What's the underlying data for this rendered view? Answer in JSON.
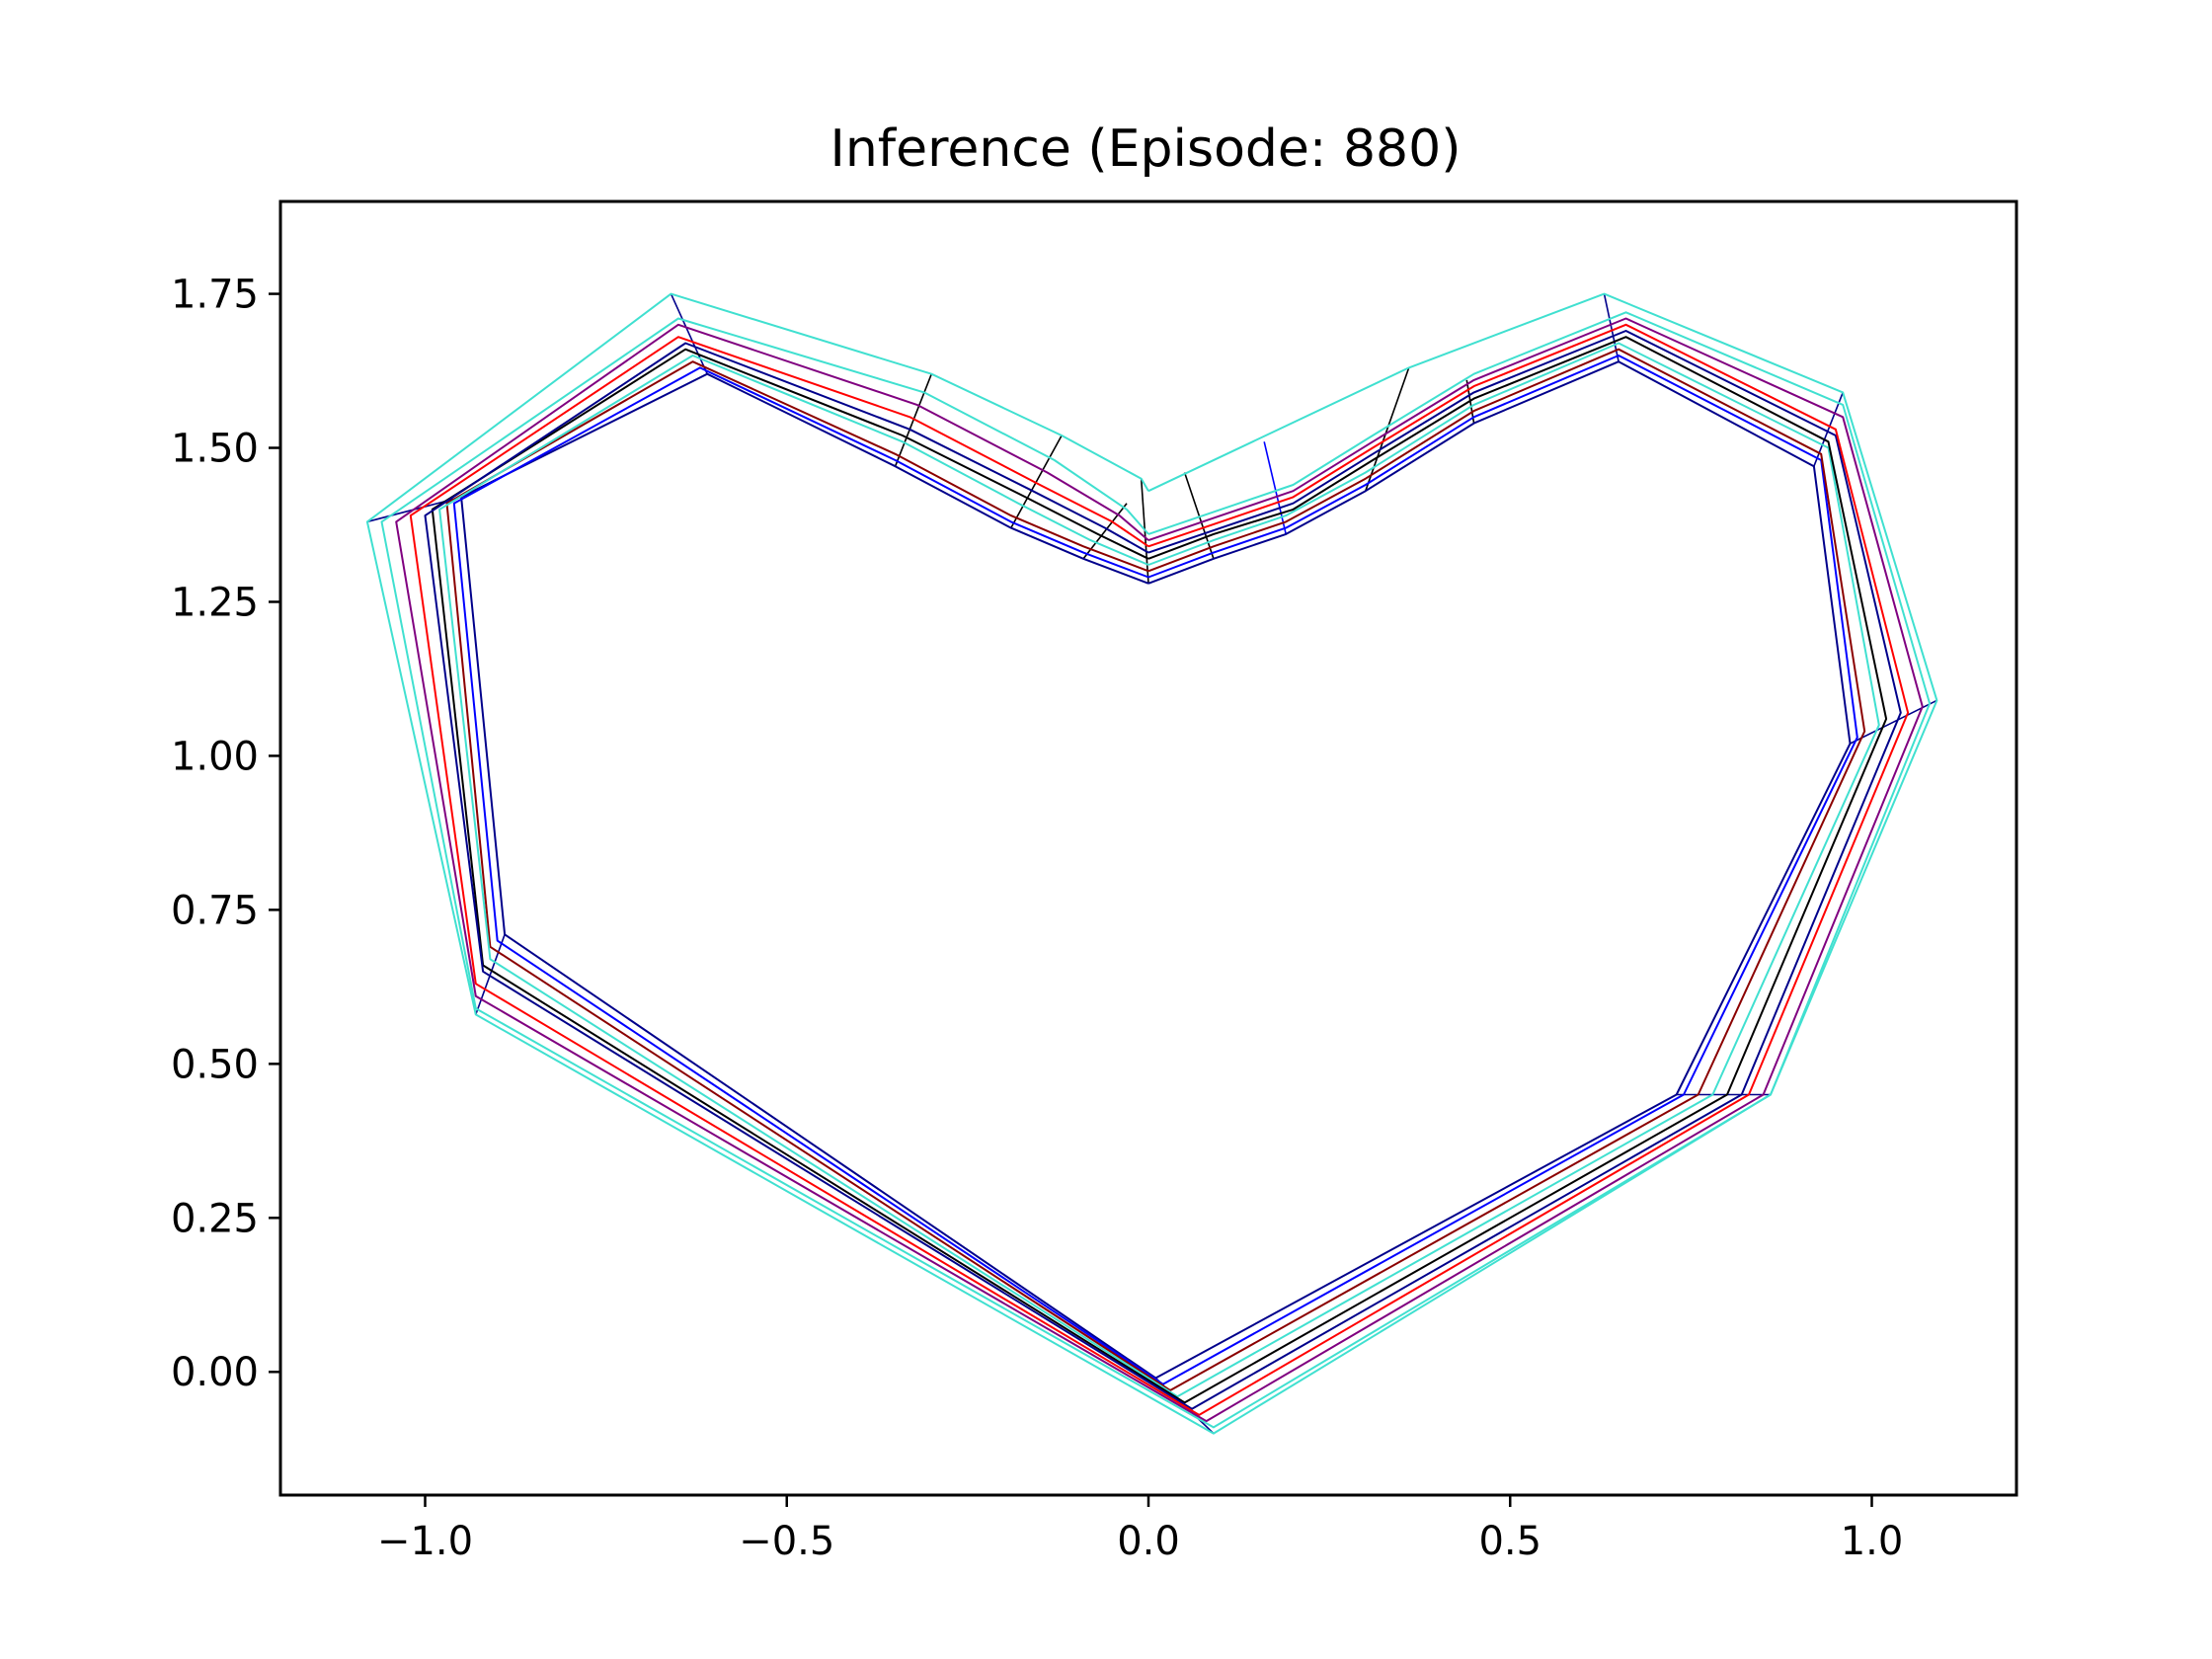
{
  "chart_data": {
    "type": "line",
    "title": "Inference (Episode: 880)",
    "xlabel": "",
    "ylabel": "",
    "xlim": [
      -1.2,
      1.2
    ],
    "ylim": [
      -0.2,
      1.9
    ],
    "grid": false,
    "legend": "none",
    "x_ticks": [
      {
        "value": -1.0,
        "label": "−1.0"
      },
      {
        "value": -0.5,
        "label": "−0.5"
      },
      {
        "value": 0.0,
        "label": "0.0"
      },
      {
        "value": 0.5,
        "label": "0.5"
      },
      {
        "value": 1.0,
        "label": "1.0"
      }
    ],
    "y_ticks": [
      {
        "value": 0.0,
        "label": "0.00"
      },
      {
        "value": 0.25,
        "label": "0.25"
      },
      {
        "value": 0.5,
        "label": "0.50"
      },
      {
        "value": 0.75,
        "label": "0.75"
      },
      {
        "value": 1.0,
        "label": "1.00"
      },
      {
        "value": 1.25,
        "label": "1.25"
      },
      {
        "value": 1.5,
        "label": "1.50"
      },
      {
        "value": 1.75,
        "label": "1.75"
      }
    ],
    "series": [
      {
        "color": "#00008b",
        "points": [
          [
            0.0,
            1.28
          ],
          [
            0.09,
            1.32
          ],
          [
            0.19,
            1.36
          ],
          [
            0.3,
            1.43
          ],
          [
            0.45,
            1.54
          ],
          [
            0.65,
            1.64
          ],
          [
            0.92,
            1.47
          ],
          [
            0.97,
            1.02
          ],
          [
            0.73,
            0.45
          ],
          [
            0.01,
            -0.01
          ],
          [
            -0.89,
            0.71
          ],
          [
            -0.95,
            1.42
          ],
          [
            -0.61,
            1.62
          ],
          [
            -0.35,
            1.47
          ],
          [
            -0.19,
            1.37
          ],
          [
            -0.09,
            1.32
          ],
          [
            0.0,
            1.28
          ]
        ]
      },
      {
        "color": "#0000ff",
        "points": [
          [
            0.0,
            1.29
          ],
          [
            0.09,
            1.33
          ],
          [
            0.19,
            1.37
          ],
          [
            0.3,
            1.44
          ],
          [
            0.45,
            1.55
          ],
          [
            0.65,
            1.65
          ],
          [
            0.93,
            1.48
          ],
          [
            0.98,
            1.03
          ],
          [
            0.74,
            0.45
          ],
          [
            0.02,
            -0.02
          ],
          [
            -0.9,
            0.7
          ],
          [
            -0.96,
            1.41
          ],
          [
            -0.62,
            1.63
          ],
          [
            -0.35,
            1.48
          ],
          [
            -0.19,
            1.38
          ],
          [
            -0.09,
            1.33
          ],
          [
            0.0,
            1.29
          ]
        ]
      },
      {
        "color": "#8b0000",
        "points": [
          [
            0.0,
            1.3
          ],
          [
            0.09,
            1.34
          ],
          [
            0.19,
            1.38
          ],
          [
            0.3,
            1.45
          ],
          [
            0.45,
            1.56
          ],
          [
            0.65,
            1.66
          ],
          [
            0.93,
            1.49
          ],
          [
            0.99,
            1.04
          ],
          [
            0.76,
            0.45
          ],
          [
            0.03,
            -0.03
          ],
          [
            -0.91,
            0.69
          ],
          [
            -0.97,
            1.41
          ],
          [
            -0.63,
            1.64
          ],
          [
            -0.35,
            1.49
          ],
          [
            -0.19,
            1.39
          ],
          [
            -0.09,
            1.34
          ],
          [
            0.0,
            1.3
          ]
        ]
      },
      {
        "color": "#40e0d0",
        "points": [
          [
            0.0,
            1.31
          ],
          [
            0.09,
            1.35
          ],
          [
            0.19,
            1.39
          ],
          [
            0.3,
            1.46
          ],
          [
            0.45,
            1.57
          ],
          [
            0.65,
            1.67
          ],
          [
            0.94,
            1.5
          ],
          [
            1.01,
            1.05
          ],
          [
            0.78,
            0.45
          ],
          [
            0.04,
            -0.04
          ],
          [
            -0.91,
            0.67
          ],
          [
            -0.98,
            1.4
          ],
          [
            -0.63,
            1.65
          ],
          [
            -0.34,
            1.51
          ],
          [
            -0.18,
            1.41
          ],
          [
            -0.08,
            1.35
          ],
          [
            0.0,
            1.31
          ]
        ]
      },
      {
        "color": "#000000",
        "points": [
          [
            0.0,
            1.32
          ],
          [
            0.09,
            1.36
          ],
          [
            0.2,
            1.4
          ],
          [
            0.31,
            1.48
          ],
          [
            0.45,
            1.58
          ],
          [
            0.66,
            1.68
          ],
          [
            0.94,
            1.51
          ],
          [
            1.02,
            1.06
          ],
          [
            0.8,
            0.45
          ],
          [
            0.05,
            -0.05
          ],
          [
            -0.92,
            0.66
          ],
          [
            -0.99,
            1.4
          ],
          [
            -0.64,
            1.66
          ],
          [
            -0.34,
            1.52
          ],
          [
            -0.17,
            1.42
          ],
          [
            -0.07,
            1.36
          ],
          [
            0.0,
            1.32
          ]
        ]
      },
      {
        "color": "#00008b",
        "points": [
          [
            0.0,
            1.33
          ],
          [
            0.1,
            1.37
          ],
          [
            0.2,
            1.41
          ],
          [
            0.31,
            1.49
          ],
          [
            0.45,
            1.59
          ],
          [
            0.66,
            1.69
          ],
          [
            0.95,
            1.52
          ],
          [
            1.04,
            1.07
          ],
          [
            0.82,
            0.45
          ],
          [
            0.06,
            -0.06
          ],
          [
            -0.92,
            0.65
          ],
          [
            -1.0,
            1.39
          ],
          [
            -0.64,
            1.67
          ],
          [
            -0.33,
            1.53
          ],
          [
            -0.16,
            1.43
          ],
          [
            -0.06,
            1.37
          ],
          [
            0.0,
            1.33
          ]
        ]
      },
      {
        "color": "#ff0000",
        "points": [
          [
            0.0,
            1.34
          ],
          [
            0.1,
            1.38
          ],
          [
            0.2,
            1.42
          ],
          [
            0.31,
            1.5
          ],
          [
            0.45,
            1.6
          ],
          [
            0.66,
            1.7
          ],
          [
            0.95,
            1.53
          ],
          [
            1.05,
            1.07
          ],
          [
            0.83,
            0.45
          ],
          [
            0.07,
            -0.07
          ],
          [
            -0.93,
            0.63
          ],
          [
            -1.02,
            1.39
          ],
          [
            -0.65,
            1.68
          ],
          [
            -0.33,
            1.55
          ],
          [
            -0.15,
            1.44
          ],
          [
            -0.05,
            1.38
          ],
          [
            0.0,
            1.34
          ]
        ]
      },
      {
        "color": "#800080",
        "points": [
          [
            0.0,
            1.35
          ],
          [
            0.1,
            1.39
          ],
          [
            0.2,
            1.43
          ],
          [
            0.31,
            1.51
          ],
          [
            0.45,
            1.61
          ],
          [
            0.66,
            1.71
          ],
          [
            0.96,
            1.55
          ],
          [
            1.07,
            1.08
          ],
          [
            0.85,
            0.45
          ],
          [
            0.08,
            -0.08
          ],
          [
            -0.93,
            0.61
          ],
          [
            -1.04,
            1.38
          ],
          [
            -0.65,
            1.7
          ],
          [
            -0.32,
            1.57
          ],
          [
            -0.14,
            1.46
          ],
          [
            -0.04,
            1.39
          ],
          [
            0.0,
            1.35
          ]
        ]
      },
      {
        "color": "#40e0d0",
        "points": [
          [
            0.0,
            1.36
          ],
          [
            0.1,
            1.4
          ],
          [
            0.2,
            1.44
          ],
          [
            0.31,
            1.52
          ],
          [
            0.45,
            1.62
          ],
          [
            0.66,
            1.72
          ],
          [
            0.96,
            1.57
          ],
          [
            1.08,
            1.085
          ],
          [
            0.86,
            0.45
          ],
          [
            0.09,
            -0.09
          ],
          [
            -0.93,
            0.59
          ],
          [
            -1.06,
            1.38
          ],
          [
            -0.65,
            1.71
          ],
          [
            -0.31,
            1.59
          ],
          [
            -0.13,
            1.48
          ],
          [
            -0.03,
            1.4
          ],
          [
            0.0,
            1.36
          ]
        ]
      },
      {
        "color": "#40e0d0",
        "points": [
          [
            0.0,
            1.43
          ],
          [
            0.36,
            1.63
          ],
          [
            0.63,
            1.75
          ],
          [
            0.96,
            1.59
          ],
          [
            1.09,
            1.09
          ],
          [
            0.86,
            0.45
          ],
          [
            0.09,
            -0.1
          ],
          [
            -0.93,
            0.58
          ],
          [
            -1.08,
            1.38
          ],
          [
            -0.66,
            1.75
          ],
          [
            -0.3,
            1.62
          ],
          [
            -0.12,
            1.52
          ],
          [
            -0.01,
            1.45
          ],
          [
            0.0,
            1.43
          ]
        ]
      }
    ],
    "connectors": [
      {
        "color": "#00008b",
        "points": [
          [
            0.65,
            1.64
          ],
          [
            0.63,
            1.75
          ]
        ]
      },
      {
        "color": "#00008b",
        "points": [
          [
            0.92,
            1.47
          ],
          [
            0.96,
            1.59
          ]
        ]
      },
      {
        "color": "#00008b",
        "points": [
          [
            0.97,
            1.02
          ],
          [
            1.09,
            1.09
          ]
        ]
      },
      {
        "color": "#00008b",
        "points": [
          [
            0.73,
            0.45
          ],
          [
            0.86,
            0.45
          ]
        ]
      },
      {
        "color": "#00008b",
        "points": [
          [
            0.01,
            -0.01
          ],
          [
            0.09,
            -0.1
          ]
        ]
      },
      {
        "color": "#00008b",
        "points": [
          [
            -0.89,
            0.71
          ],
          [
            -0.93,
            0.58
          ]
        ]
      },
      {
        "color": "#00008b",
        "points": [
          [
            -0.95,
            1.42
          ],
          [
            -1.08,
            1.38
          ]
        ]
      },
      {
        "color": "#00008b",
        "points": [
          [
            -0.61,
            1.62
          ],
          [
            -0.66,
            1.75
          ]
        ]
      },
      {
        "color": "#000000",
        "points": [
          [
            -0.35,
            1.47
          ],
          [
            -0.3,
            1.62
          ]
        ]
      },
      {
        "color": "#000000",
        "points": [
          [
            -0.19,
            1.37
          ],
          [
            -0.12,
            1.52
          ]
        ]
      },
      {
        "color": "#000000",
        "points": [
          [
            -0.09,
            1.32
          ],
          [
            -0.03,
            1.41
          ]
        ]
      },
      {
        "color": "#000000",
        "points": [
          [
            0.0,
            1.28
          ],
          [
            -0.01,
            1.45
          ]
        ]
      },
      {
        "color": "#000000",
        "points": [
          [
            0.09,
            1.32
          ],
          [
            0.05,
            1.46
          ]
        ]
      },
      {
        "color": "#0000ff",
        "points": [
          [
            0.19,
            1.36
          ],
          [
            0.16,
            1.51
          ]
        ]
      },
      {
        "color": "#000000",
        "points": [
          [
            0.3,
            1.43
          ],
          [
            0.36,
            1.63
          ]
        ]
      },
      {
        "color": "#000000",
        "points": [
          [
            0.45,
            1.54
          ],
          [
            0.44,
            1.61
          ]
        ]
      }
    ]
  }
}
